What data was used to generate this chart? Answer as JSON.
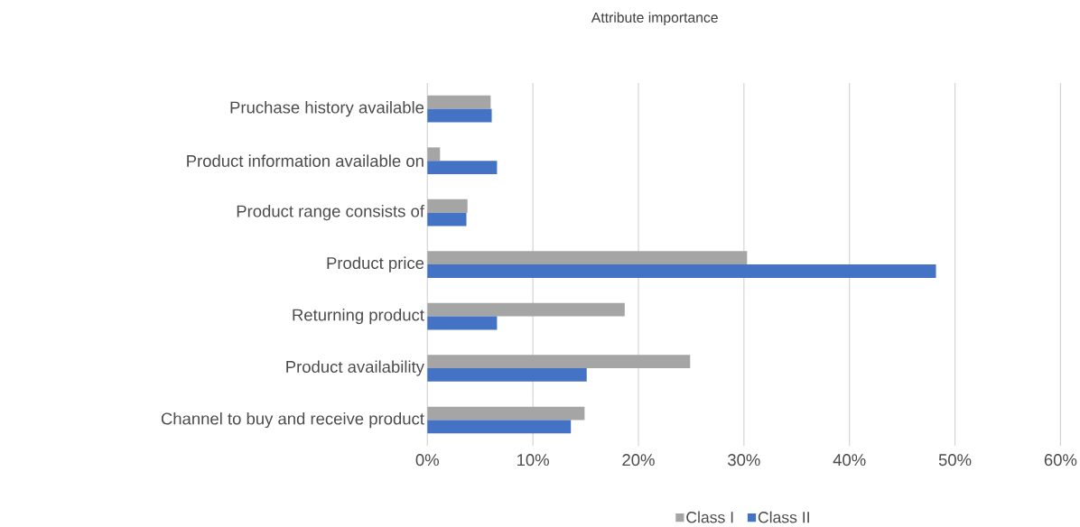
{
  "chart_data": {
    "type": "bar",
    "orientation": "horizontal",
    "title": "Attribute importance",
    "categories": [
      "Pruchase history available",
      "Product information available on",
      "Product range consists of",
      "Product price",
      "Returning product",
      "Product availability",
      "Channel to buy and receive product"
    ],
    "series": [
      {
        "name": "Class I",
        "color": "#a5a5a5",
        "values": [
          6.0,
          1.2,
          3.8,
          30.3,
          18.7,
          24.9,
          14.9
        ]
      },
      {
        "name": "Class II",
        "color": "#4472c4",
        "values": [
          6.1,
          6.6,
          3.7,
          48.2,
          6.6,
          15.1,
          13.6
        ]
      }
    ],
    "xlim": [
      0,
      60
    ],
    "xticks": [
      {
        "value": 0,
        "label": "0%"
      },
      {
        "value": 10,
        "label": "10%"
      },
      {
        "value": 20,
        "label": "20%"
      },
      {
        "value": 30,
        "label": "30%"
      },
      {
        "value": 40,
        "label": "40%"
      },
      {
        "value": 50,
        "label": "50%"
      },
      {
        "value": 60,
        "label": "60%"
      }
    ],
    "grid": "x",
    "legend": "bottom"
  }
}
